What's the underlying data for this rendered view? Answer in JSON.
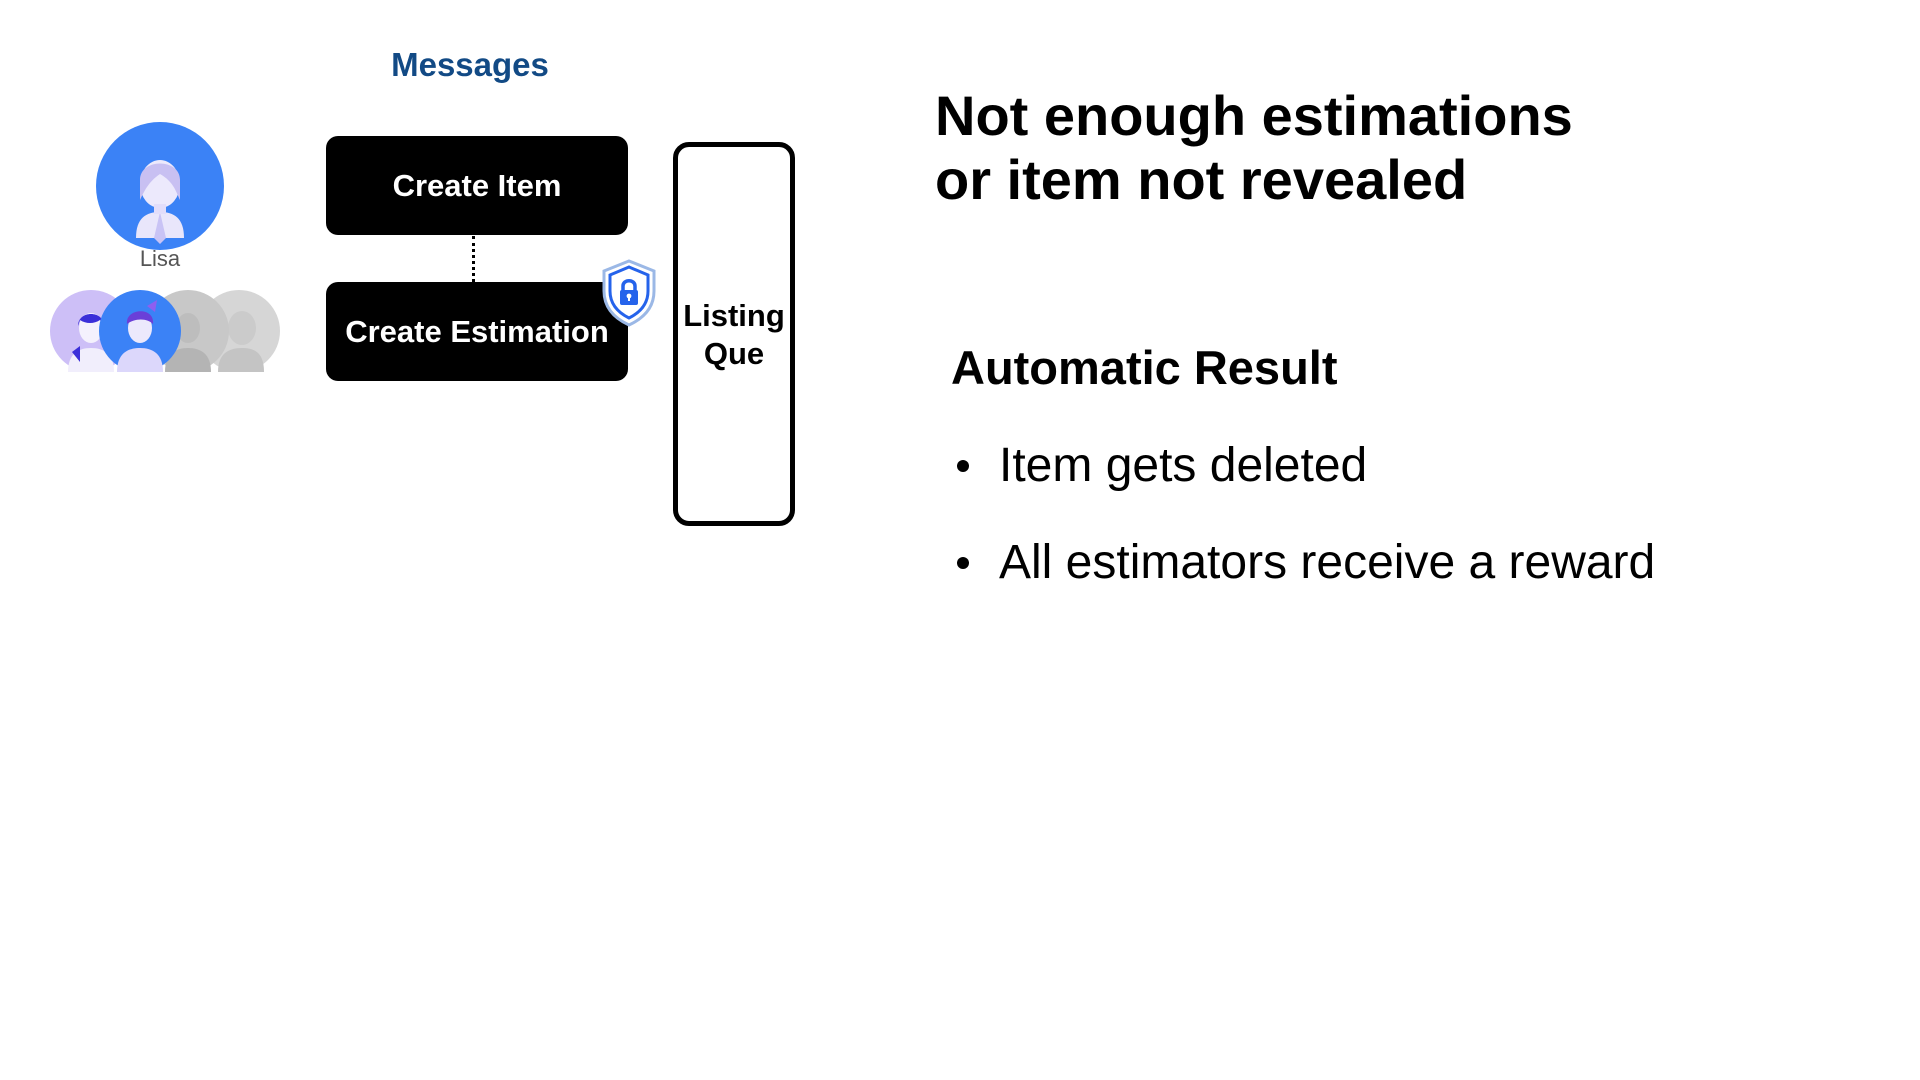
{
  "messages": {
    "title": "Messages",
    "create_item": "Create Item",
    "create_estimation": "Create Estimation"
  },
  "users": {
    "main_name": "Lisa"
  },
  "listing_queue": {
    "line1": "Listing",
    "line2": "Que"
  },
  "result": {
    "heading_line1": "Not enough estimations",
    "heading_line2": "or item not revealed",
    "subheading": "Automatic Result",
    "bullets": [
      "Item gets deleted",
      "All estimators receive a reward"
    ]
  },
  "colors": {
    "messages_title": "#124a85",
    "avatar_blue": "#3b82f6",
    "shield_blue": "#2563eb"
  },
  "icons": {
    "main_avatar": "user-avatar-icon",
    "lock": "shield-lock-icon"
  }
}
